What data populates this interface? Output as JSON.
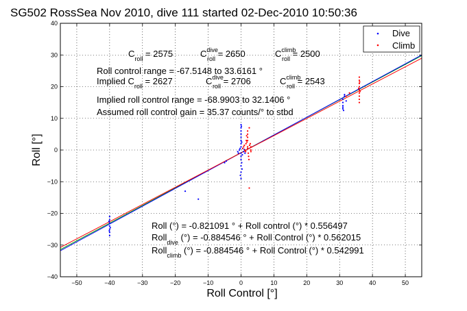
{
  "chart_data": {
    "type": "scatter",
    "title": "SG502 RossSea Nov 2010, dive 111 started 02-Dec-2010 10:50:36",
    "xlabel": "Roll Control [°]",
    "ylabel": "Roll [°]",
    "xlim": [
      -55,
      55
    ],
    "ylim": [
      -40,
      40
    ],
    "xticks": [
      -50,
      -40,
      -30,
      -20,
      -10,
      0,
      10,
      20,
      30,
      40,
      50
    ],
    "yticks": [
      -40,
      -30,
      -20,
      -10,
      0,
      10,
      20,
      30,
      40
    ],
    "grid": "dotted",
    "legend_position": "top-right",
    "legend": [
      {
        "label": "Dive",
        "color": "#0000ff"
      },
      {
        "label": "Climb",
        "color": "#ff0000"
      }
    ],
    "fit_lines": [
      {
        "name": "all",
        "intercept": -0.821091,
        "slope": 0.556497,
        "color": "#00a000"
      },
      {
        "name": "dive",
        "intercept": -0.884546,
        "slope": 0.562015,
        "color": "#0000ff"
      },
      {
        "name": "climb",
        "intercept": -0.884546,
        "slope": 0.542991,
        "color": "#ff0000"
      }
    ],
    "series": [
      {
        "name": "Dive",
        "color": "#0000ff",
        "points": [
          [
            -40,
            -21
          ],
          [
            -40,
            -22
          ],
          [
            -40,
            -23
          ],
          [
            -40,
            -24
          ],
          [
            -40,
            -25
          ],
          [
            -40,
            -26
          ],
          [
            -40,
            -27
          ],
          [
            -40.2,
            -22.5
          ],
          [
            -39.8,
            -24.5
          ],
          [
            -40.1,
            -25.5
          ],
          [
            -17,
            -13
          ],
          [
            -13,
            -15.5
          ],
          [
            -5,
            -4
          ],
          [
            -4.5,
            -3.5
          ],
          [
            -1,
            -0.5
          ],
          [
            -0.8,
            -1
          ],
          [
            -0.5,
            0
          ],
          [
            -0.3,
            0.5
          ],
          [
            0,
            -1
          ],
          [
            0,
            -2
          ],
          [
            0,
            -3
          ],
          [
            0,
            -5
          ],
          [
            0,
            -7
          ],
          [
            0,
            -9
          ],
          [
            0,
            1
          ],
          [
            0,
            2
          ],
          [
            0,
            3
          ],
          [
            0,
            4
          ],
          [
            0,
            5
          ],
          [
            0,
            6
          ],
          [
            0,
            7
          ],
          [
            0,
            8
          ],
          [
            0.2,
            -4
          ],
          [
            0.3,
            -6
          ],
          [
            0.2,
            2.5
          ],
          [
            0.4,
            -1.5
          ],
          [
            0.5,
            0.5
          ],
          [
            0.8,
            -0.5
          ],
          [
            1,
            0.2
          ],
          [
            1.2,
            -1
          ],
          [
            -0.2,
            -8
          ],
          [
            0.1,
            7.5
          ],
          [
            31,
            13
          ],
          [
            31,
            13.5
          ],
          [
            31,
            14
          ],
          [
            31,
            15
          ],
          [
            31,
            16
          ],
          [
            31.5,
            17
          ],
          [
            31.5,
            17.5
          ],
          [
            32,
            15.5
          ],
          [
            31.2,
            12.5
          ]
        ]
      },
      {
        "name": "Climb",
        "color": "#ff0000",
        "points": [
          [
            0.5,
            0.5
          ],
          [
            0.8,
            1
          ],
          [
            1,
            1.5
          ],
          [
            1.2,
            0
          ],
          [
            1.5,
            2
          ],
          [
            1.6,
            3
          ],
          [
            1.8,
            2.5
          ],
          [
            2,
            0.5
          ],
          [
            2,
            1
          ],
          [
            2,
            3
          ],
          [
            2,
            4
          ],
          [
            2,
            5
          ],
          [
            2,
            6
          ],
          [
            2.2,
            -1
          ],
          [
            2.3,
            -2
          ],
          [
            2.4,
            -3
          ],
          [
            2.5,
            7
          ],
          [
            2.5,
            -12
          ],
          [
            2.6,
            1.5
          ],
          [
            2.8,
            2
          ],
          [
            3,
            0
          ],
          [
            3,
            1
          ],
          [
            3,
            -0.5
          ],
          [
            1.4,
            -0.5
          ],
          [
            1.7,
            4.5
          ],
          [
            36,
            15
          ],
          [
            36,
            16
          ],
          [
            36,
            17
          ],
          [
            36,
            18
          ],
          [
            36,
            19
          ],
          [
            36,
            20
          ],
          [
            36,
            21
          ],
          [
            36,
            22
          ],
          [
            36,
            23
          ],
          [
            36.2,
            18.5
          ],
          [
            35.8,
            19.5
          ],
          [
            36.1,
            21.5
          ],
          [
            32,
            17
          ],
          [
            33,
            18
          ]
        ]
      }
    ]
  },
  "annotations": {
    "c_roll_line": {
      "c1_main": "C",
      "c1_sub": "roll",
      "c1_val": " = 2575",
      "c2_main": "C",
      "c2_sup": "dive",
      "c2_sub": "roll",
      "c2_val": " = 2650",
      "c3_main": "C",
      "c3_sup": "climb",
      "c3_sub": "roll",
      "c3_val": " = 2500"
    },
    "roll_control_range": "Roll control range = -67.5148 to 33.6161 °",
    "implied_line": {
      "i1_main": "Implied C",
      "i1_sub": "roll",
      "i1_val": " = 2627",
      "i2_main": "C",
      "i2_sup": "dive",
      "i2_sub": "roll",
      "i2_val": " = 2706",
      "i3_main": "C",
      "i3_sup": "climb",
      "i3_sub": "roll",
      "i3_val": " = 2543"
    },
    "implied_range": "Implied roll control range = -68.9903 to 32.1406 °",
    "assumed_gain": "Assumed roll control gain = 35.37 counts/° to stbd",
    "fit_all": "Roll (°) = -0.821091 ° + Roll control (°) * 0.556497",
    "fit_dive": {
      "main": "Roll",
      "sub": "dive",
      "rest": " (°) = -0.884546 ° + Roll Control (°) * 0.562015"
    },
    "fit_climb": {
      "main": "Roll",
      "sub": "climb",
      "rest": " (°) = -0.884546 ° + Roll Control (°) * 0.542991"
    }
  }
}
